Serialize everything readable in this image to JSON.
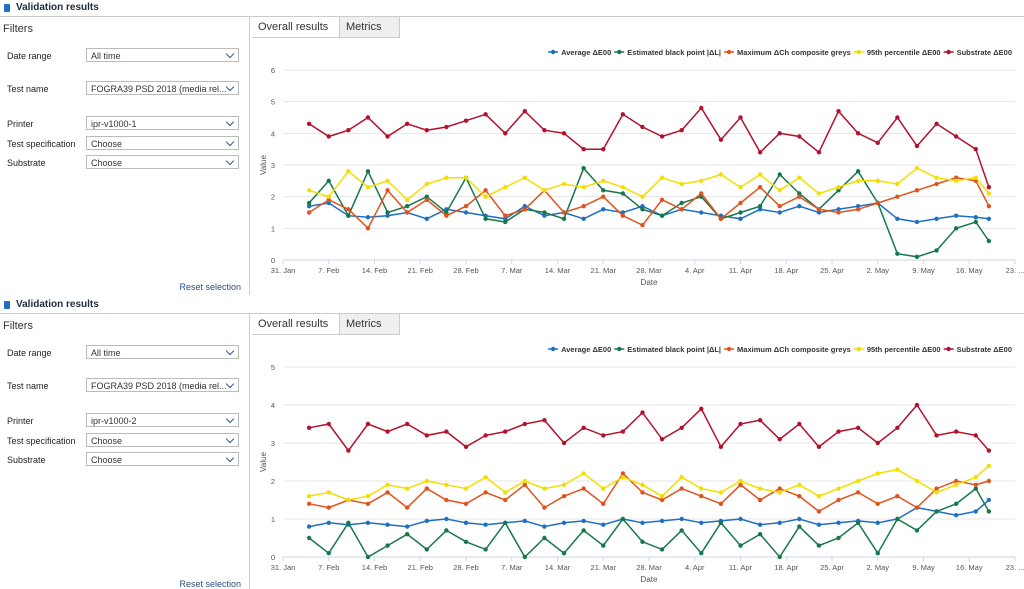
{
  "panels": [
    {
      "header": "Validation results",
      "filters_title": "Filters",
      "fields": [
        {
          "label": "Date range",
          "value": "All time"
        },
        {
          "label": "Test name",
          "value": "FOGRA39 PSD 2018 (media rel..."
        },
        {
          "label": "Printer",
          "value": "ipr-v1000-1"
        },
        {
          "label": "Test specification",
          "value": "Choose"
        },
        {
          "label": "Substrate",
          "value": "Choose"
        }
      ],
      "reset": "Reset selection",
      "tabs": [
        "Overall results",
        "Metrics"
      ]
    },
    {
      "header": "Validation results",
      "filters_title": "Filters",
      "fields": [
        {
          "label": "Date range",
          "value": "All time"
        },
        {
          "label": "Test name",
          "value": "FOGRA39 PSD 2018 (media rel..."
        },
        {
          "label": "Printer",
          "value": "ipr-v1000-2"
        },
        {
          "label": "Test specification",
          "value": "Choose"
        },
        {
          "label": "Substrate",
          "value": "Choose"
        }
      ],
      "reset": "Reset selection",
      "tabs": [
        "Overall results",
        "Metrics"
      ]
    }
  ],
  "chart_data": [
    {
      "type": "line",
      "x_label": "Date",
      "y_label": "Value",
      "x": [
        "02-04",
        "02-07",
        "02-10",
        "02-13",
        "02-16",
        "02-19",
        "02-22",
        "02-25",
        "02-28",
        "03-03",
        "03-06",
        "03-09",
        "03-12",
        "03-15",
        "03-18",
        "03-21",
        "03-24",
        "03-27",
        "03-30",
        "04-02",
        "04-05",
        "04-08",
        "04-11",
        "04-14",
        "04-17",
        "04-20",
        "04-23",
        "04-26",
        "04-29",
        "05-02",
        "05-05",
        "05-08",
        "05-11",
        "05-14",
        "05-17",
        "05-19"
      ],
      "xlim": [
        "01-31",
        "05-23"
      ],
      "xticks": [
        {
          "value": "01-31",
          "label": "31. Jan"
        },
        {
          "value": "02-07",
          "label": "7. Feb"
        },
        {
          "value": "02-14",
          "label": "14. Feb"
        },
        {
          "value": "02-21",
          "label": "21. Feb"
        },
        {
          "value": "02-28",
          "label": "28. Feb"
        },
        {
          "value": "03-07",
          "label": "7. Mar"
        },
        {
          "value": "03-14",
          "label": "14. Mar"
        },
        {
          "value": "03-21",
          "label": "21. Mar"
        },
        {
          "value": "03-28",
          "label": "28. Mar"
        },
        {
          "value": "04-04",
          "label": "4. Apr"
        },
        {
          "value": "04-11",
          "label": "11. Apr"
        },
        {
          "value": "04-18",
          "label": "18. Apr"
        },
        {
          "value": "04-25",
          "label": "25. Apr"
        },
        {
          "value": "05-02",
          "label": "2. May"
        },
        {
          "value": "05-09",
          "label": "9. May"
        },
        {
          "value": "05-16",
          "label": "16. May"
        },
        {
          "value": "05-23",
          "label": "23. ..."
        }
      ],
      "ylim": [
        0,
        6
      ],
      "yticks": [
        0,
        1,
        2,
        3,
        4,
        5,
        6
      ],
      "grid": true,
      "legend": "top-right",
      "series": [
        {
          "name": "Average ΔE00",
          "color": "#1f6fc2",
          "values": [
            1.7,
            1.8,
            1.4,
            1.35,
            1.4,
            1.5,
            1.3,
            1.6,
            1.5,
            1.4,
            1.3,
            1.7,
            1.4,
            1.5,
            1.3,
            1.6,
            1.5,
            1.7,
            1.4,
            1.6,
            1.5,
            1.4,
            1.3,
            1.6,
            1.5,
            1.7,
            1.5,
            1.6,
            1.7,
            1.8,
            1.3,
            1.2,
            1.3,
            1.4,
            1.35,
            1.3
          ]
        },
        {
          "name": "Estimated black point |ΔL|",
          "color": "#17784a",
          "values": [
            1.8,
            2.5,
            1.4,
            2.8,
            1.5,
            1.7,
            2.0,
            1.5,
            2.6,
            1.3,
            1.2,
            1.6,
            1.5,
            1.3,
            2.9,
            2.2,
            2.1,
            1.6,
            1.4,
            1.8,
            2.0,
            1.3,
            1.5,
            1.7,
            2.7,
            2.1,
            1.6,
            2.2,
            2.8,
            1.8,
            0.2,
            0.1,
            0.3,
            1.0,
            1.2,
            0.6
          ]
        },
        {
          "name": "Maximum ΔCh composite greys",
          "color": "#e0531c",
          "values": [
            1.5,
            1.9,
            1.6,
            1.0,
            2.2,
            1.5,
            1.9,
            1.4,
            1.7,
            2.2,
            1.4,
            1.6,
            2.2,
            1.5,
            1.7,
            2.0,
            1.4,
            1.1,
            1.9,
            1.6,
            2.1,
            1.3,
            1.8,
            2.3,
            1.7,
            2.0,
            1.6,
            1.5,
            1.6,
            1.8,
            2.0,
            2.2,
            2.4,
            2.6,
            2.5,
            1.7
          ]
        },
        {
          "name": "95th percentile ΔE00",
          "color": "#f2df00",
          "values": [
            2.2,
            2.0,
            2.8,
            2.3,
            2.5,
            1.9,
            2.4,
            2.6,
            2.6,
            2.0,
            2.3,
            2.6,
            2.2,
            2.4,
            2.3,
            2.5,
            2.3,
            2.0,
            2.6,
            2.4,
            2.5,
            2.7,
            2.3,
            2.7,
            2.2,
            2.6,
            2.1,
            2.3,
            2.5,
            2.5,
            2.4,
            2.9,
            2.6,
            2.5,
            2.6,
            2.1
          ]
        },
        {
          "name": "Substrate ΔE00",
          "color": "#b3112c",
          "values": [
            4.3,
            3.9,
            4.1,
            4.5,
            3.9,
            4.3,
            4.1,
            4.2,
            4.4,
            4.6,
            4.0,
            4.7,
            4.1,
            4.0,
            3.5,
            3.5,
            4.6,
            4.2,
            3.9,
            4.1,
            4.8,
            3.8,
            4.5,
            3.4,
            4.0,
            3.9,
            3.4,
            4.7,
            4.0,
            3.7,
            4.5,
            3.6,
            4.3,
            3.9,
            3.5,
            2.3
          ]
        }
      ]
    },
    {
      "type": "line",
      "x_label": "Date",
      "y_label": "Value",
      "x": [
        "02-04",
        "02-07",
        "02-10",
        "02-13",
        "02-16",
        "02-19",
        "02-22",
        "02-25",
        "02-28",
        "03-03",
        "03-06",
        "03-09",
        "03-12",
        "03-15",
        "03-18",
        "03-21",
        "03-24",
        "03-27",
        "03-30",
        "04-02",
        "04-05",
        "04-08",
        "04-11",
        "04-14",
        "04-17",
        "04-20",
        "04-23",
        "04-26",
        "04-29",
        "05-02",
        "05-05",
        "05-08",
        "05-11",
        "05-14",
        "05-17",
        "05-19"
      ],
      "xlim": [
        "01-31",
        "05-23"
      ],
      "xticks": [
        {
          "value": "01-31",
          "label": "31. Jan"
        },
        {
          "value": "02-07",
          "label": "7. Feb"
        },
        {
          "value": "02-14",
          "label": "14. Feb"
        },
        {
          "value": "02-21",
          "label": "21. Feb"
        },
        {
          "value": "02-28",
          "label": "28. Feb"
        },
        {
          "value": "03-07",
          "label": "7. Mar"
        },
        {
          "value": "03-14",
          "label": "14. Mar"
        },
        {
          "value": "03-21",
          "label": "21. Mar"
        },
        {
          "value": "03-28",
          "label": "28. Mar"
        },
        {
          "value": "04-04",
          "label": "4. Apr"
        },
        {
          "value": "04-11",
          "label": "11. Apr"
        },
        {
          "value": "04-18",
          "label": "18. Apr"
        },
        {
          "value": "04-25",
          "label": "25. Apr"
        },
        {
          "value": "05-02",
          "label": "2. May"
        },
        {
          "value": "05-09",
          "label": "9. May"
        },
        {
          "value": "05-16",
          "label": "16. May"
        },
        {
          "value": "05-23",
          "label": "23. ..."
        }
      ],
      "ylim": [
        0,
        5
      ],
      "yticks": [
        0,
        1,
        2,
        3,
        4,
        5
      ],
      "grid": true,
      "legend": "top-right",
      "series": [
        {
          "name": "Average ΔE00",
          "color": "#1f6fc2",
          "values": [
            0.8,
            0.9,
            0.85,
            0.9,
            0.85,
            0.8,
            0.95,
            1.0,
            0.9,
            0.85,
            0.9,
            0.95,
            0.8,
            0.9,
            0.95,
            0.85,
            1.0,
            0.9,
            0.95,
            1.0,
            0.9,
            0.95,
            1.0,
            0.85,
            0.9,
            1.0,
            0.85,
            0.9,
            0.95,
            0.9,
            1.0,
            1.3,
            1.2,
            1.1,
            1.2,
            1.5
          ]
        },
        {
          "name": "Estimated black point |ΔL|",
          "color": "#17784a",
          "values": [
            0.5,
            0.1,
            0.9,
            0.0,
            0.3,
            0.6,
            0.2,
            0.7,
            0.4,
            0.2,
            0.9,
            0.0,
            0.5,
            0.1,
            0.7,
            0.3,
            1.0,
            0.4,
            0.2,
            0.7,
            0.1,
            0.9,
            0.3,
            0.6,
            0.0,
            0.8,
            0.3,
            0.5,
            0.9,
            0.1,
            1.0,
            0.7,
            1.2,
            1.4,
            1.8,
            1.2
          ]
        },
        {
          "name": "Maximum ΔCh composite greys",
          "color": "#e0531c",
          "values": [
            1.4,
            1.3,
            1.5,
            1.4,
            1.7,
            1.3,
            1.8,
            1.5,
            1.4,
            1.7,
            1.5,
            1.9,
            1.3,
            1.6,
            1.8,
            1.4,
            2.2,
            1.7,
            1.5,
            1.8,
            1.6,
            1.4,
            1.9,
            1.5,
            1.8,
            1.6,
            1.2,
            1.5,
            1.7,
            1.4,
            1.6,
            1.3,
            1.8,
            2.0,
            1.9,
            2.0
          ]
        },
        {
          "name": "95th percentile ΔE00",
          "color": "#f2df00",
          "values": [
            1.6,
            1.7,
            1.5,
            1.6,
            1.9,
            1.8,
            2.0,
            1.9,
            1.8,
            2.1,
            1.7,
            2.0,
            1.8,
            1.9,
            2.2,
            1.8,
            2.1,
            1.9,
            1.6,
            2.1,
            1.8,
            1.7,
            2.0,
            1.8,
            1.7,
            1.9,
            1.6,
            1.8,
            2.0,
            2.2,
            2.3,
            2.0,
            1.7,
            1.9,
            2.1,
            2.4
          ]
        },
        {
          "name": "Substrate ΔE00",
          "color": "#b3112c",
          "values": [
            3.4,
            3.5,
            2.8,
            3.5,
            3.3,
            3.5,
            3.2,
            3.3,
            2.9,
            3.2,
            3.3,
            3.5,
            3.6,
            3.0,
            3.4,
            3.2,
            3.3,
            3.8,
            3.1,
            3.4,
            3.9,
            2.9,
            3.5,
            3.6,
            3.1,
            3.5,
            2.9,
            3.3,
            3.4,
            3.0,
            3.4,
            4.0,
            3.2,
            3.3,
            3.2,
            2.8
          ]
        }
      ]
    }
  ]
}
